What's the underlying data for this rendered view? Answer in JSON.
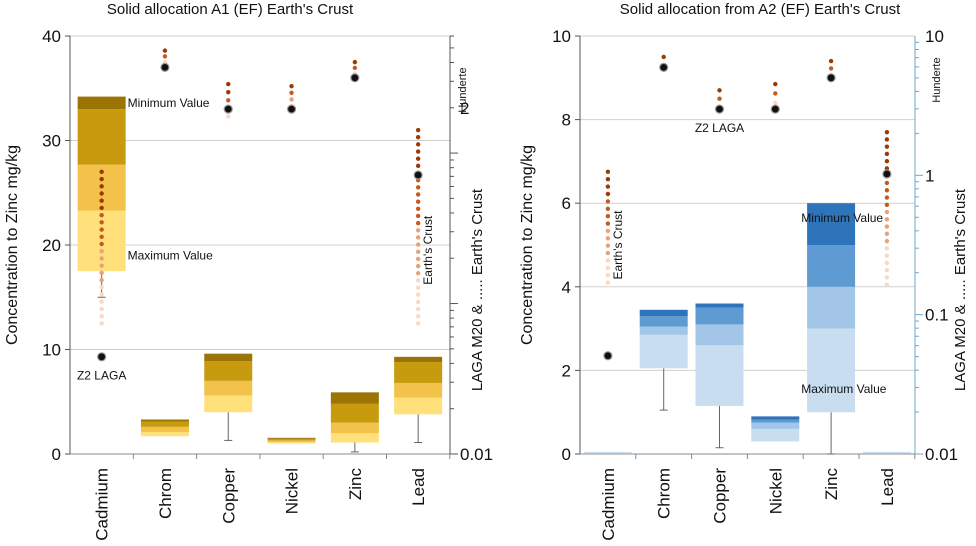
{
  "chart_data": [
    {
      "type": "bar",
      "title": "Solid allocation A1 (EF) Earth's Crust",
      "ylabel": "Concentration to Zinc  mg/kg",
      "y2label": "LAGA M20 & ..... Earth's Crust",
      "y2_top_label": "Hunderte",
      "ylim": [
        0,
        40
      ],
      "yticks": [
        "0",
        "10",
        "20",
        "30",
        "40"
      ],
      "y2ticks": [
        {
          "label": "2",
          "value": 2
        },
        {
          "label": "0.01",
          "value": 0.01
        }
      ],
      "y2range_log": [
        0.01,
        6
      ],
      "categories": [
        "Cadmium",
        "Chrom",
        "Copper",
        "Nickel",
        "Zinc",
        "Lead"
      ],
      "palette": [
        "#ffe07a",
        "#f2c24a",
        "#c89a0e",
        "#9a7405",
        "#7a5a00",
        "#000000"
      ],
      "stacks": [
        {
          "category": "Cadmium",
          "levels": [
            17.5,
            23.3,
            27.7,
            33.0,
            34.2
          ]
        },
        {
          "category": "Chrom",
          "levels": [
            1.7,
            2.1,
            2.6,
            3.1,
            3.3
          ]
        },
        {
          "category": "Copper",
          "levels": [
            4.0,
            5.6,
            7.0,
            8.9,
            9.6
          ]
        },
        {
          "category": "Nickel",
          "levels": [
            1.0,
            1.15,
            1.3,
            1.45,
            1.55
          ]
        },
        {
          "category": "Zinc",
          "levels": [
            1.1,
            2.0,
            3.0,
            4.8,
            5.9
          ]
        },
        {
          "category": "Lead",
          "levels": [
            3.8,
            5.4,
            6.8,
            8.8,
            9.3
          ]
        }
      ],
      "whiskers": [
        {
          "category": "Cadmium",
          "low": 15.0,
          "high": 17.5
        },
        {
          "category": "Copper",
          "low": 1.3,
          "high": 4.0
        },
        {
          "category": "Zinc",
          "low": 0.2,
          "high": 1.1
        },
        {
          "category": "Lead",
          "low": 1.1,
          "high": 3.8
        }
      ],
      "laga_z2": [
        {
          "category": "Cadmium",
          "value": 9.3
        },
        {
          "category": "Chrom",
          "value": 37.0
        },
        {
          "category": "Copper",
          "value": 33.0
        },
        {
          "category": "Nickel",
          "value": 33.0
        },
        {
          "category": "Zinc",
          "value": 36.0
        },
        {
          "category": "Lead",
          "value": 26.7
        }
      ],
      "crust_dots": [
        {
          "category": "Cadmium",
          "from": 12.5,
          "to": 27.0,
          "n": 22
        },
        {
          "category": "Chrom",
          "from": 37.5,
          "to": 38.6,
          "n": 3
        },
        {
          "category": "Copper",
          "from": 32.3,
          "to": 35.4,
          "n": 5
        },
        {
          "category": "Nickel",
          "from": 33.3,
          "to": 35.2,
          "n": 4
        },
        {
          "category": "Zinc",
          "from": 36.4,
          "to": 37.5,
          "n": 3
        },
        {
          "category": "Lead",
          "from": 12.5,
          "to": 31.0,
          "n": 28
        }
      ],
      "annotations": [
        {
          "text": "Minimum Value",
          "category": "Cadmium",
          "value": 33.6,
          "style": "right"
        },
        {
          "text": "Maximum Value",
          "category": "Cadmium",
          "value": 19.0,
          "style": "right"
        },
        {
          "text": "Z2 LAGA",
          "category": "Cadmium",
          "value": 7.5,
          "style": "center"
        },
        {
          "text": "Earth's Crust",
          "category": "Lead",
          "value": 19.5,
          "style": "vertical"
        }
      ]
    },
    {
      "type": "bar",
      "title": "Solid allocation from A2 (EF) Earth's Crust",
      "ylabel": "Concentration to Zinc  mg/kg",
      "y2label": "LAGA M20 & ..... Earth's Crust",
      "y2_top_label": "Hunderte",
      "ylim": [
        0,
        10
      ],
      "yticks": [
        "0",
        "2",
        "4",
        "6",
        "8",
        "10"
      ],
      "y2ticks": [
        {
          "label": "10",
          "value": 10
        },
        {
          "label": "1",
          "value": 1
        },
        {
          "label": "0.1",
          "value": 0.1
        },
        {
          "label": "0.01",
          "value": 0.01
        }
      ],
      "y2range_log": [
        0.01,
        10
      ],
      "categories": [
        "Cadmium",
        "Chrom",
        "Copper",
        "Nickel",
        "Zinc",
        "Lead"
      ],
      "palette": [
        "#c9ddf1",
        "#a3c6e8",
        "#5e9bd3",
        "#2e74bb",
        "#1f4e82"
      ],
      "stacks": [
        {
          "category": "Cadmium",
          "levels": [
            0.03,
            0.05
          ]
        },
        {
          "category": "Chrom",
          "levels": [
            2.05,
            2.85,
            3.05,
            3.3,
            3.45
          ]
        },
        {
          "category": "Copper",
          "levels": [
            1.15,
            2.6,
            3.1,
            3.5,
            3.6
          ]
        },
        {
          "category": "Nickel",
          "levels": [
            0.3,
            0.6,
            0.75,
            0.82,
            0.9
          ]
        },
        {
          "category": "Zinc",
          "levels": [
            1.0,
            3.0,
            4.0,
            5.0,
            6.0
          ]
        },
        {
          "category": "Lead",
          "levels": [
            0.03,
            0.05
          ]
        }
      ],
      "whiskers": [
        {
          "category": "Chrom",
          "low": 1.05,
          "high": 2.05
        },
        {
          "category": "Copper",
          "low": 0.15,
          "high": 1.15
        },
        {
          "category": "Zinc",
          "low": 0.0,
          "high": 1.0
        }
      ],
      "laga_z2": [
        {
          "category": "Cadmium",
          "value": 2.35
        },
        {
          "category": "Chrom",
          "value": 9.25
        },
        {
          "category": "Copper",
          "value": 8.25
        },
        {
          "category": "Nickel",
          "value": 8.25
        },
        {
          "category": "Zinc",
          "value": 9.0
        },
        {
          "category": "Lead",
          "value": 6.7
        }
      ],
      "crust_dots": [
        {
          "category": "Cadmium",
          "from": 4.1,
          "to": 6.75,
          "n": 16
        },
        {
          "category": "Chrom",
          "from": 9.3,
          "to": 9.5,
          "n": 2
        },
        {
          "category": "Copper",
          "from": 8.3,
          "to": 8.7,
          "n": 3
        },
        {
          "category": "Nickel",
          "from": 8.4,
          "to": 8.85,
          "n": 3
        },
        {
          "category": "Zinc",
          "from": 9.05,
          "to": 9.4,
          "n": 3
        },
        {
          "category": "Lead",
          "from": 4.05,
          "to": 7.7,
          "n": 22
        }
      ],
      "annotations": [
        {
          "text": "Z2 LAGA",
          "category": "Copper",
          "value": 7.8,
          "style": "center"
        },
        {
          "text": "Minimum Value",
          "category": "Nickel",
          "value": 5.65,
          "style": "right"
        },
        {
          "text": "Maximum Value",
          "category": "Nickel",
          "value": 1.55,
          "style": "right"
        },
        {
          "text": "Earth's Crust",
          "category": "Cadmium",
          "value": 5.0,
          "style": "vertical"
        }
      ]
    }
  ]
}
